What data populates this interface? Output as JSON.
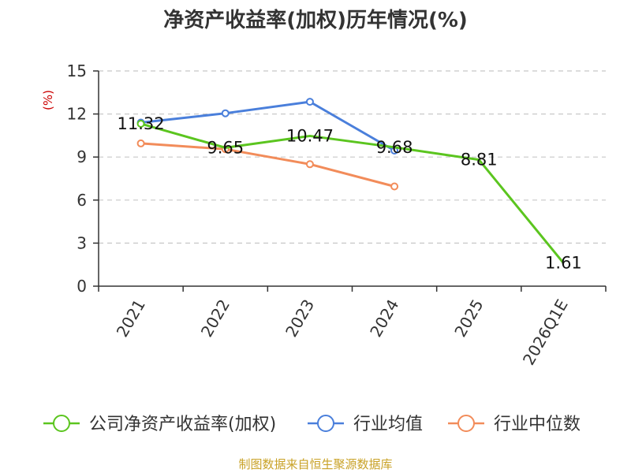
{
  "chart_data": {
    "type": "line",
    "title": "净资产收益率(加权)历年情况(%)",
    "ylabel": "(%)",
    "xlabel": "",
    "ylim": [
      0,
      15
    ],
    "yticks": [
      0,
      3,
      6,
      9,
      12,
      15
    ],
    "categories": [
      "2021",
      "2022",
      "2023",
      "2024",
      "2025",
      "2026Q1E"
    ],
    "grid": true,
    "legend_position": "bottom",
    "series": [
      {
        "name": "公司净资产收益率(加权)",
        "color": "#5bc51f",
        "values": [
          11.32,
          9.65,
          10.47,
          9.68,
          8.81,
          1.61
        ],
        "labels": [
          "11.32",
          "9.65",
          "10.47",
          "9.68",
          "8.81",
          "1.61"
        ],
        "markers": [
          true,
          false,
          false,
          false,
          false,
          false
        ]
      },
      {
        "name": "行业均值",
        "color": "#4a7fdb",
        "values": [
          11.4,
          12.05,
          12.85,
          9.45,
          null,
          null
        ],
        "labels": [],
        "markers": [
          true,
          true,
          true,
          true,
          false,
          false
        ]
      },
      {
        "name": "行业中位数",
        "color": "#f28c5a",
        "values": [
          9.95,
          9.55,
          8.5,
          6.95,
          null,
          null
        ],
        "labels": [],
        "markers": [
          true,
          true,
          true,
          true,
          false,
          false
        ]
      }
    ],
    "source": "制图数据来自恒生聚源数据库"
  }
}
